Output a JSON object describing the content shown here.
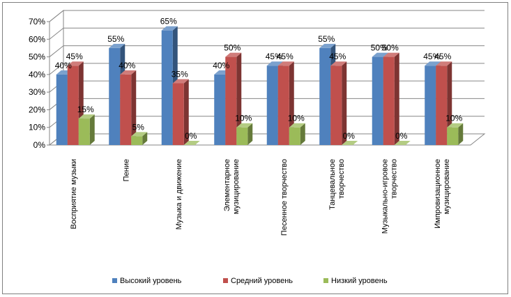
{
  "chart_data": {
    "type": "bar",
    "title": "",
    "xlabel": "",
    "ylabel": "",
    "ylim": [
      0,
      70
    ],
    "grid": true,
    "legend_position": "bottom",
    "y_ticks": [
      "0%",
      "10%",
      "20%",
      "30%",
      "40%",
      "50%",
      "60%",
      "70%"
    ],
    "categories": [
      [
        "Восприятие музыки"
      ],
      [
        "Пение"
      ],
      [
        "Музыка и движение"
      ],
      [
        "Элементарное",
        "музицирование"
      ],
      [
        "Песенное творчество"
      ],
      [
        "Танцевальное",
        "творчество"
      ],
      [
        "Музыкально-игровое",
        "творчество"
      ],
      [
        "Импровизационное",
        "музицирование"
      ]
    ],
    "series": [
      {
        "name": "Высокий уровень",
        "color": "#4f81bd",
        "values": [
          40,
          55,
          65,
          40,
          45,
          55,
          50,
          45
        ],
        "labels": [
          "40%",
          "55%",
          "65%",
          "40%",
          "45%",
          "55%",
          "50%",
          "45%"
        ]
      },
      {
        "name": "Средний уровень",
        "color": "#c0504d",
        "values": [
          45,
          40,
          35,
          50,
          45,
          45,
          50,
          45
        ],
        "labels": [
          "45%",
          "40%",
          "35%",
          "50%",
          "45%",
          "45%",
          "50%",
          "45%"
        ]
      },
      {
        "name": "Низкий уровень",
        "color": "#9bbb59",
        "values": [
          15,
          5,
          0,
          10,
          10,
          0,
          0,
          10
        ],
        "labels": [
          "15%",
          "5%",
          "0%",
          "10%",
          "10%",
          "0%",
          "0%",
          "10%"
        ]
      }
    ]
  }
}
